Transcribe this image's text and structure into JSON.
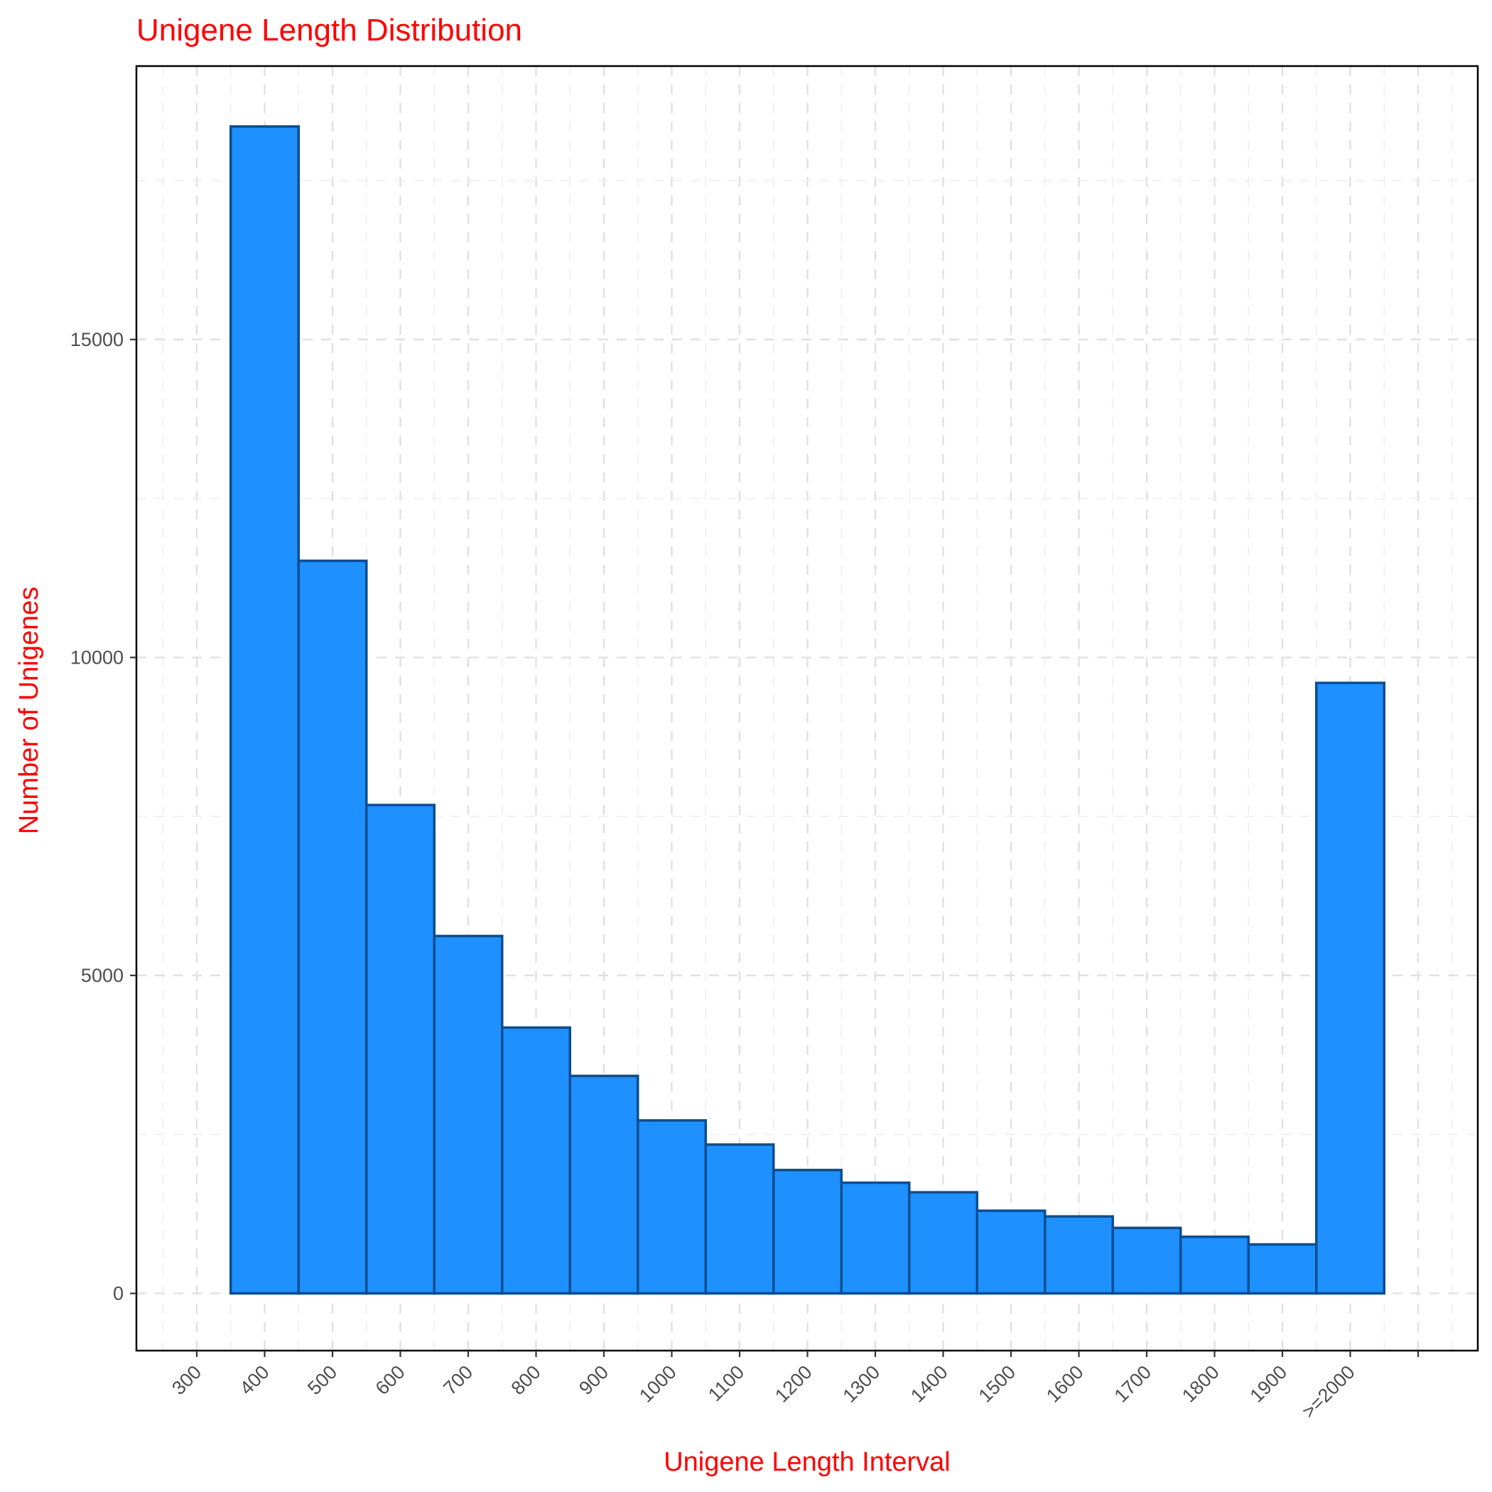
{
  "chart_data": {
    "type": "bar",
    "title": "Unigene Length Distribution",
    "xlabel": "Unigene Length Interval",
    "ylabel": "Number of Unigenes",
    "x_ticks": [
      "300",
      "400",
      "500",
      "600",
      "700",
      "800",
      "900",
      "1000",
      "1100",
      "1200",
      "1300",
      "1400",
      "1500",
      "1600",
      "1700",
      "1800",
      "1900",
      ">=2000"
    ],
    "categories": [
      "400",
      "500",
      "600",
      "700",
      "800",
      "900",
      "1000",
      "1100",
      "1200",
      "1300",
      "1400",
      "1500",
      "1600",
      "1700",
      "1800",
      "1900",
      ">=2000"
    ],
    "values": [
      18350,
      11520,
      7680,
      5620,
      4180,
      3420,
      2720,
      2340,
      1940,
      1740,
      1590,
      1300,
      1210,
      1030,
      890,
      770,
      9600
    ],
    "y_ticks": [
      0,
      5000,
      10000,
      15000
    ],
    "ylim": [
      -900,
      19300
    ],
    "grid": true,
    "bar_fill": "#1e90ff",
    "bar_stroke": "#0c4d8f",
    "title_color": "#ff0000",
    "label_color": "#ff0000"
  }
}
